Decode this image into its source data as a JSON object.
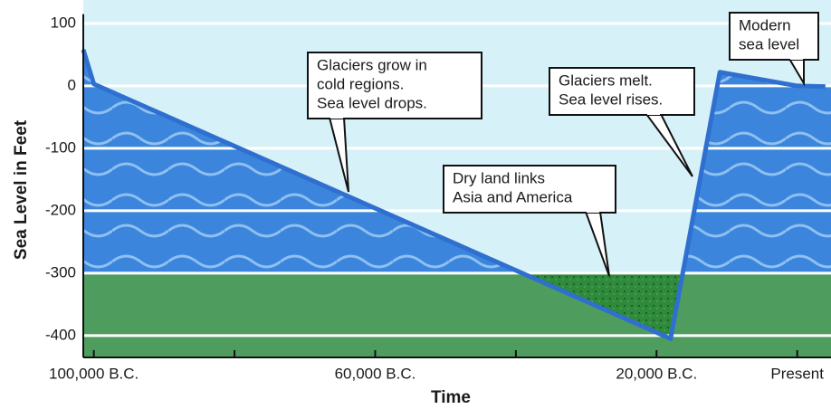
{
  "chart_data": {
    "type": "area",
    "x_label": "Time",
    "y_label": "Sea Level in Feet",
    "x": [
      -101500,
      -100000,
      -18000,
      -11000,
      0,
      4000
    ],
    "values": [
      58,
      3,
      -405,
      22,
      0,
      -1
    ],
    "color": "#2f6fcf",
    "water_color": "#3b86dc",
    "sky_color": "#d6f1f8",
    "land_color": "#4f9d5e",
    "dry_land_color": "#2f8a3c",
    "xlim": [
      -101500,
      4800
    ],
    "ylim": [
      -435,
      115
    ],
    "xticks": [
      {
        "value": -100000,
        "label": "100,000 B.C."
      },
      {
        "value": -60000,
        "label": "60,000 B.C."
      },
      {
        "value": -20000,
        "label": "20,000 B.C."
      },
      {
        "value": 0,
        "label": "Present"
      }
    ],
    "xticks_minor": [
      -80000,
      -40000
    ],
    "yticks": [
      100,
      0,
      -100,
      -200,
      -300,
      -400
    ],
    "land_level": -300,
    "grid": true,
    "annotations": [
      {
        "text": [
          "Glaciers grow in",
          "cold regions.",
          "Sea level drops."
        ]
      },
      {
        "text": [
          "Dry land links",
          "Asia and America"
        ]
      },
      {
        "text": [
          "Glaciers melt.",
          "Sea level rises."
        ]
      },
      {
        "text": [
          "Modern",
          "sea level"
        ]
      }
    ]
  }
}
